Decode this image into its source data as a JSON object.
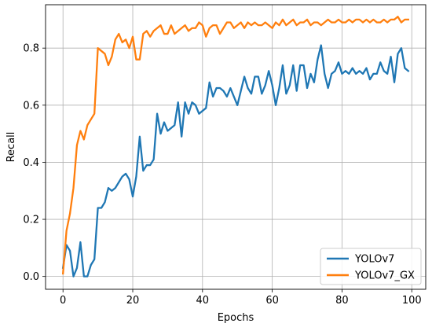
{
  "chart_data": {
    "type": "line",
    "title": "",
    "xlabel": "Epochs",
    "ylabel": "Recall",
    "xlim": [
      -5,
      104
    ],
    "ylim": [
      -0.045,
      0.952
    ],
    "xticks": [
      0,
      20,
      40,
      60,
      80,
      100
    ],
    "yticks": [
      0.0,
      0.2,
      0.4,
      0.6,
      0.8
    ],
    "ytick_labels": [
      "0.0",
      "0.2",
      "0.4",
      "0.6",
      "0.8"
    ],
    "grid": true,
    "legend_position": "lower-right",
    "x": [
      0,
      1,
      2,
      3,
      4,
      5,
      6,
      7,
      8,
      9,
      10,
      11,
      12,
      13,
      14,
      15,
      16,
      17,
      18,
      19,
      20,
      21,
      22,
      23,
      24,
      25,
      26,
      27,
      28,
      29,
      30,
      31,
      32,
      33,
      34,
      35,
      36,
      37,
      38,
      39,
      40,
      41,
      42,
      43,
      44,
      45,
      46,
      47,
      48,
      49,
      50,
      51,
      52,
      53,
      54,
      55,
      56,
      57,
      58,
      59,
      60,
      61,
      62,
      63,
      64,
      65,
      66,
      67,
      68,
      69,
      70,
      71,
      72,
      73,
      74,
      75,
      76,
      77,
      78,
      79,
      80,
      81,
      82,
      83,
      84,
      85,
      86,
      87,
      88,
      89,
      90,
      91,
      92,
      93,
      94,
      95,
      96,
      97,
      98,
      99
    ],
    "series": [
      {
        "name": "YOLOv7",
        "color": "#1f77b4",
        "values": [
          0.03,
          0.11,
          0.09,
          0.0,
          0.03,
          0.12,
          0.0,
          0.0,
          0.04,
          0.06,
          0.24,
          0.24,
          0.26,
          0.31,
          0.3,
          0.31,
          0.33,
          0.35,
          0.36,
          0.34,
          0.28,
          0.35,
          0.49,
          0.37,
          0.39,
          0.39,
          0.41,
          0.57,
          0.5,
          0.54,
          0.51,
          0.52,
          0.53,
          0.61,
          0.49,
          0.61,
          0.57,
          0.61,
          0.6,
          0.57,
          0.58,
          0.59,
          0.68,
          0.63,
          0.66,
          0.66,
          0.65,
          0.63,
          0.66,
          0.63,
          0.6,
          0.65,
          0.7,
          0.66,
          0.64,
          0.7,
          0.7,
          0.64,
          0.67,
          0.72,
          0.67,
          0.6,
          0.66,
          0.74,
          0.64,
          0.67,
          0.74,
          0.65,
          0.74,
          0.74,
          0.66,
          0.71,
          0.68,
          0.76,
          0.81,
          0.71,
          0.66,
          0.71,
          0.72,
          0.75,
          0.71,
          0.72,
          0.71,
          0.73,
          0.71,
          0.72,
          0.71,
          0.73,
          0.69,
          0.71,
          0.71,
          0.75,
          0.72,
          0.71,
          0.77,
          0.68,
          0.78,
          0.8,
          0.73,
          0.72
        ]
      },
      {
        "name": "YOLOv7_GX",
        "color": "#ff7f0e",
        "values": [
          0.01,
          0.16,
          0.22,
          0.31,
          0.46,
          0.51,
          0.48,
          0.53,
          0.55,
          0.57,
          0.8,
          0.79,
          0.78,
          0.74,
          0.77,
          0.83,
          0.85,
          0.82,
          0.83,
          0.8,
          0.84,
          0.76,
          0.76,
          0.85,
          0.86,
          0.84,
          0.86,
          0.87,
          0.88,
          0.85,
          0.85,
          0.88,
          0.85,
          0.86,
          0.87,
          0.88,
          0.86,
          0.87,
          0.87,
          0.89,
          0.88,
          0.84,
          0.87,
          0.88,
          0.88,
          0.85,
          0.87,
          0.89,
          0.89,
          0.87,
          0.88,
          0.89,
          0.87,
          0.89,
          0.88,
          0.89,
          0.88,
          0.88,
          0.89,
          0.88,
          0.87,
          0.89,
          0.88,
          0.9,
          0.88,
          0.89,
          0.9,
          0.88,
          0.89,
          0.89,
          0.9,
          0.88,
          0.89,
          0.89,
          0.88,
          0.89,
          0.9,
          0.89,
          0.89,
          0.9,
          0.89,
          0.89,
          0.9,
          0.89,
          0.9,
          0.9,
          0.89,
          0.9,
          0.89,
          0.9,
          0.89,
          0.89,
          0.9,
          0.89,
          0.9,
          0.9,
          0.91,
          0.89,
          0.9,
          0.9
        ]
      }
    ]
  }
}
